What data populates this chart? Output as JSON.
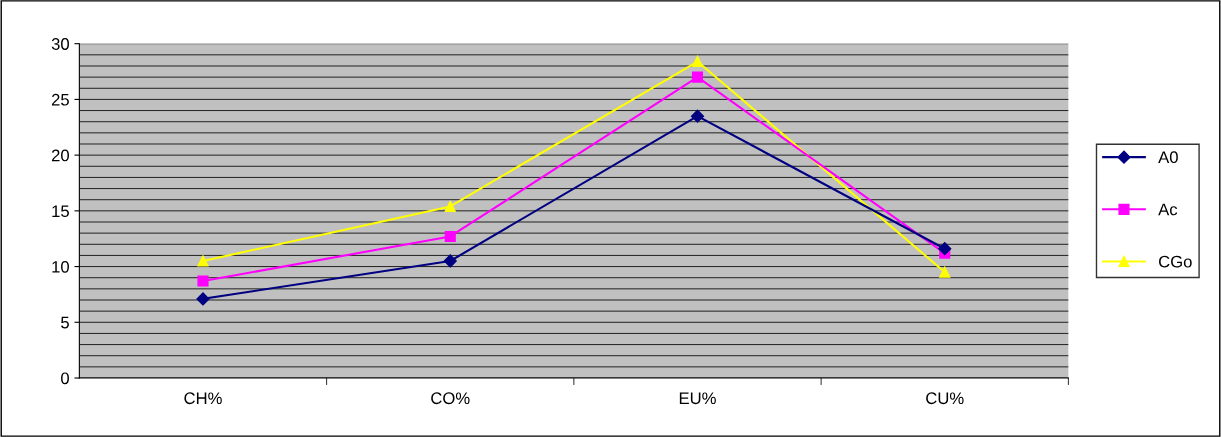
{
  "chart_data": {
    "type": "line",
    "categories": [
      "CH%",
      "CO%",
      "EU%",
      "CU%"
    ],
    "series": [
      {
        "name": "A0",
        "color": "#000080",
        "marker": "diamond",
        "values": [
          7.1,
          10.5,
          23.5,
          11.6
        ]
      },
      {
        "name": "Ac",
        "color": "#ff00ff",
        "marker": "square",
        "values": [
          8.7,
          12.7,
          27.0,
          11.2
        ]
      },
      {
        "name": "CGo",
        "color": "#ffff00",
        "marker": "triangle",
        "values": [
          10.5,
          15.4,
          28.4,
          9.5
        ]
      }
    ],
    "ylim": [
      0,
      30
    ],
    "yticks": [
      0,
      {
        "value": 1,
        "label": null
      },
      {
        "value": 2,
        "label": null
      },
      {
        "value": 3,
        "label": null
      },
      {
        "value": 4,
        "label": null
      },
      5,
      {
        "value": 6,
        "label": null
      },
      {
        "value": 7,
        "label": null
      },
      {
        "value": 8,
        "label": null
      },
      {
        "value": 9,
        "label": null
      },
      10,
      {
        "value": 11,
        "label": null
      },
      {
        "value": 12,
        "label": null
      },
      {
        "value": 13,
        "label": null
      },
      {
        "value": 14,
        "label": null
      },
      15,
      {
        "value": 16,
        "label": null
      },
      {
        "value": 17,
        "label": null
      },
      {
        "value": 18,
        "label": null
      },
      {
        "value": 19,
        "label": null
      },
      20,
      {
        "value": 21,
        "label": null
      },
      {
        "value": 22,
        "label": null
      },
      {
        "value": 23,
        "label": null
      },
      {
        "value": 24,
        "label": null
      },
      25,
      {
        "value": 26,
        "label": null
      },
      {
        "value": 27,
        "label": null
      },
      {
        "value": 28,
        "label": null
      },
      {
        "value": 29,
        "label": null
      },
      30
    ],
    "grid": "y",
    "legend": "right"
  }
}
